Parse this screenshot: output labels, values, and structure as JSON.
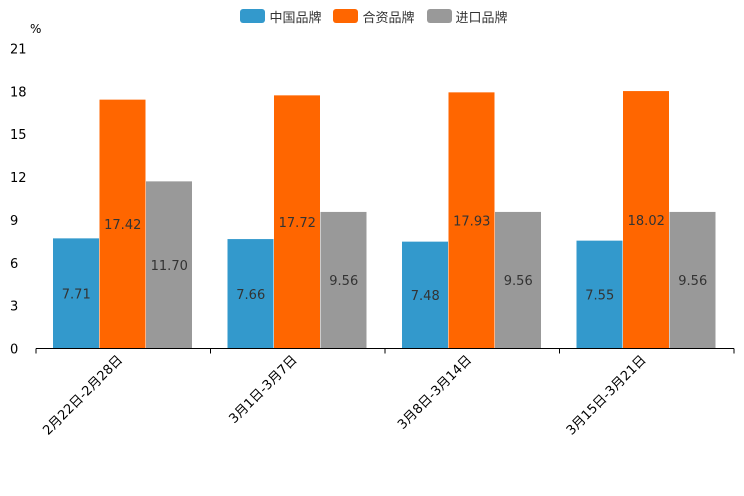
{
  "chart_data": {
    "type": "bar",
    "unit": "%",
    "categories": [
      "2月22日-2月28日",
      "3月1日-3月7日",
      "3月8日-3月14日",
      "3月15日-3月21日"
    ],
    "series": [
      {
        "name": "中国品牌",
        "color": "#3399cc",
        "values": [
          7.71,
          7.66,
          7.48,
          7.55
        ],
        "labels": [
          "7.71",
          "7.66",
          "7.48",
          "7.55"
        ]
      },
      {
        "name": "合资品牌",
        "color": "#ff6600",
        "values": [
          17.42,
          17.72,
          17.93,
          18.02
        ],
        "labels": [
          "17.42",
          "17.72",
          "17.93",
          "18.02"
        ]
      },
      {
        "name": "进口品牌",
        "color": "#999999",
        "values": [
          11.7,
          9.56,
          9.56,
          9.56
        ],
        "labels": [
          "11.70",
          "9.56",
          "9.56",
          "9.56"
        ]
      }
    ],
    "yticks": [
      "0",
      "3",
      "6",
      "9",
      "12",
      "15",
      "18",
      "21"
    ],
    "ylim": [
      0,
      21
    ],
    "legend_position": "top-center"
  }
}
